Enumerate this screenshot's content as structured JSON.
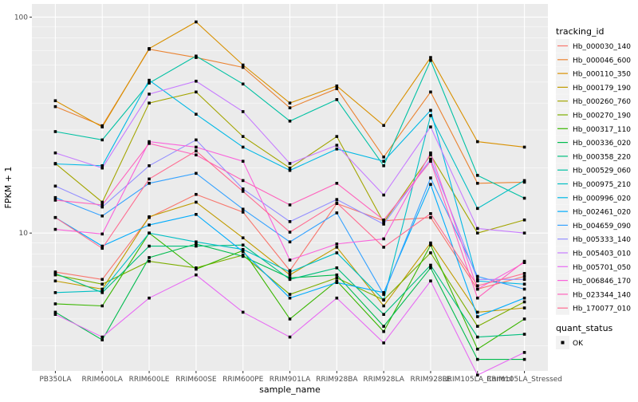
{
  "chart_data": {
    "type": "line",
    "xlabel": "sample_name",
    "ylabel": "FPKM + 1",
    "y_scale": "log10",
    "ylim": [
      2.3,
      115
    ],
    "y_ticks": [
      10,
      100
    ],
    "y_tick_labels": [
      "10",
      "100"
    ],
    "grid": true,
    "legend_position": "right",
    "categories": [
      "PB350LA",
      "RRIM600LA",
      "RRIM600LE",
      "RRIM600SE",
      "RRIM600PE",
      "RRIM901LA",
      "RRIM928BA",
      "RRIM928LA",
      "RRIM928LE",
      "RRIM105LA_Control",
      "RRIM105LA_Stressed"
    ],
    "legend": {
      "title": "tracking_id",
      "shape_title": "quant_status",
      "shape_label": "OK"
    },
    "series": [
      {
        "name": "Hb_000030_140",
        "color": "#F8766D",
        "values": [
          6.6,
          6.1,
          11.8,
          15.1,
          12.5,
          6.7,
          13.7,
          11.4,
          11.8,
          5.5,
          6.3
        ]
      },
      {
        "name": "Hb_000046_600",
        "color": "#EA8331",
        "values": [
          38.5,
          31.4,
          71.0,
          65.0,
          58.5,
          38.0,
          46.6,
          22.5,
          45.0,
          17.0,
          17.2
        ]
      },
      {
        "name": "Hb_000110_350",
        "color": "#D89000",
        "values": [
          41.0,
          31.0,
          71.5,
          95.0,
          60.0,
          40.0,
          48.0,
          31.5,
          65.0,
          26.5,
          25.0
        ]
      },
      {
        "name": "Hb_000179_190",
        "color": "#C09B00",
        "values": [
          6.0,
          5.5,
          11.9,
          13.9,
          9.5,
          6.4,
          8.6,
          4.6,
          9.0,
          4.3,
          4.5
        ]
      },
      {
        "name": "Hb_000260_760",
        "color": "#A3A500",
        "values": [
          21.0,
          13.9,
          40.0,
          45.0,
          28.0,
          20.0,
          28.0,
          11.2,
          23.0,
          10.0,
          11.5
        ]
      },
      {
        "name": "Hb_000270_190",
        "color": "#7CAE00",
        "values": [
          6.4,
          5.8,
          7.4,
          6.9,
          7.9,
          5.2,
          6.2,
          4.9,
          8.1,
          3.7,
          4.8
        ]
      },
      {
        "name": "Hb_000317_110",
        "color": "#39B600",
        "values": [
          4.7,
          4.6,
          10.0,
          6.8,
          8.3,
          4.0,
          6.0,
          3.5,
          8.8,
          2.9,
          4.0
        ]
      },
      {
        "name": "Hb_000336_020",
        "color": "#00BB4E",
        "values": [
          4.3,
          3.2,
          7.7,
          8.9,
          7.8,
          6.2,
          6.4,
          3.7,
          6.9,
          2.6,
          2.6
        ]
      },
      {
        "name": "Hb_000358_220",
        "color": "#00BF7D",
        "values": [
          6.5,
          5.3,
          8.7,
          8.7,
          8.8,
          6.1,
          6.9,
          4.2,
          7.1,
          3.3,
          3.4
        ]
      },
      {
        "name": "Hb_000529_060",
        "color": "#00C1A3",
        "values": [
          29.5,
          27.0,
          49.5,
          66.0,
          49.0,
          33.0,
          41.5,
          20.5,
          63.0,
          18.5,
          14.5
        ]
      },
      {
        "name": "Hb_000975_210",
        "color": "#00BFC4",
        "values": [
          5.3,
          5.4,
          10.0,
          9.1,
          8.4,
          6.6,
          8.1,
          4.9,
          35.0,
          13.0,
          17.5
        ]
      },
      {
        "name": "Hb_000996_020",
        "color": "#00B8E5",
        "values": [
          20.9,
          20.5,
          51.0,
          35.5,
          25.0,
          19.5,
          24.5,
          21.5,
          37.0,
          6.0,
          5.8
        ]
      },
      {
        "name": "Hb_002461_020",
        "color": "#00ACFC",
        "values": [
          11.8,
          8.7,
          10.9,
          12.2,
          8.2,
          5.0,
          5.9,
          5.3,
          16.8,
          4.1,
          5.0
        ]
      },
      {
        "name": "Hb_004659_090",
        "color": "#35A2FF",
        "values": [
          14.6,
          12.0,
          17.0,
          18.9,
          12.9,
          9.1,
          12.4,
          5.2,
          18.0,
          6.3,
          5.5
        ]
      },
      {
        "name": "Hb_005333_140",
        "color": "#9590FF",
        "values": [
          16.5,
          13.2,
          20.5,
          27.0,
          16.0,
          11.3,
          14.3,
          11.0,
          22.0,
          6.1,
          6.1
        ]
      },
      {
        "name": "Hb_005403_010",
        "color": "#C77CFF",
        "values": [
          23.5,
          20.0,
          44.0,
          50.5,
          36.5,
          21.0,
          25.5,
          15.0,
          31.0,
          10.5,
          10.0
        ]
      },
      {
        "name": "Hb_005701_050",
        "color": "#E76BF3",
        "values": [
          4.2,
          3.3,
          5.0,
          6.4,
          4.3,
          3.3,
          5.0,
          3.1,
          6.0,
          2.2,
          2.8
        ]
      },
      {
        "name": "Hb_006846_170",
        "color": "#FA62DB",
        "values": [
          10.4,
          9.9,
          26.5,
          25.0,
          21.5,
          7.5,
          8.9,
          9.4,
          23.5,
          5.5,
          7.3
        ]
      },
      {
        "name": "Hb_023344_140",
        "color": "#FF62BC",
        "values": [
          14.2,
          13.5,
          26.0,
          23.0,
          17.5,
          13.5,
          17.0,
          11.5,
          21.5,
          5.0,
          7.4
        ]
      },
      {
        "name": "Hb_170077_010",
        "color": "#FF6C91",
        "values": [
          11.8,
          8.5,
          17.8,
          24.0,
          15.6,
          10.1,
          13.8,
          8.6,
          12.3,
          5.7,
          6.5
        ]
      }
    ]
  }
}
